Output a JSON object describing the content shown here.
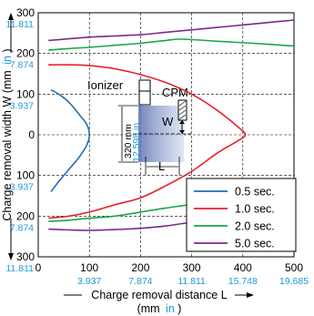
{
  "chart_data": {
    "type": "line",
    "xlabel": "Charge removal distance L",
    "xlabel_unit_prefix": "(mm",
    "xlabel_unit_in": "in",
    "xlabel_unit_suffix": ")",
    "ylabel": "Charge removal width W (mm",
    "ylabel_in": "in",
    "ylabel_suffix": ")",
    "xlim": [
      0,
      500
    ],
    "ylim": [
      -300,
      300
    ],
    "x_ticks_mm": [
      "0",
      "100",
      "200",
      "300",
      "400",
      "500"
    ],
    "x_ticks_in": [
      "3.937",
      "7.874",
      "11.811",
      "15.748",
      "19.685"
    ],
    "y_ticks_mm": [
      "300",
      "200",
      "100",
      "0",
      "100",
      "200",
      "300"
    ],
    "y_ticks_in": [
      "11.811",
      "7.874",
      "3.937",
      "3.937",
      "7.874",
      "11.811"
    ],
    "grid": true,
    "legend_position": "bottom-right",
    "series": [
      {
        "name": "0.5 sec.",
        "color": "#1f6fb4",
        "points": [
          [
            25,
            110
          ],
          [
            40,
            100
          ],
          [
            60,
            80
          ],
          [
            80,
            50
          ],
          [
            95,
            25
          ],
          [
            100,
            0
          ],
          [
            95,
            -25
          ],
          [
            80,
            -55
          ],
          [
            60,
            -85
          ],
          [
            40,
            -115
          ],
          [
            25,
            -140
          ]
        ]
      },
      {
        "name": "1.0 sec.",
        "color": "#e8212b",
        "points": [
          [
            20,
            172
          ],
          [
            60,
            172
          ],
          [
            100,
            170
          ],
          [
            150,
            162
          ],
          [
            200,
            148
          ],
          [
            250,
            128
          ],
          [
            300,
            100
          ],
          [
            350,
            60
          ],
          [
            390,
            20
          ],
          [
            405,
            0
          ],
          [
            390,
            -15
          ],
          [
            350,
            -45
          ],
          [
            300,
            -90
          ],
          [
            250,
            -125
          ],
          [
            200,
            -155
          ],
          [
            150,
            -172
          ],
          [
            100,
            -190
          ],
          [
            60,
            -200
          ],
          [
            20,
            -205
          ]
        ]
      },
      {
        "name": "2.0 sec.",
        "color": "#1aa64b",
        "points": [
          [
            20,
            208
          ],
          [
            60,
            212
          ],
          [
            100,
            215
          ],
          [
            150,
            220
          ],
          [
            200,
            225
          ],
          [
            250,
            232
          ],
          [
            280,
            235
          ],
          [
            350,
            230
          ],
          [
            420,
            225
          ],
          [
            500,
            218
          ]
        ],
        "points_lower": [
          [
            20,
            -213
          ],
          [
            60,
            -210
          ],
          [
            100,
            -205
          ],
          [
            150,
            -200
          ],
          [
            200,
            -190
          ],
          [
            250,
            -180
          ],
          [
            300,
            -172
          ],
          [
            360,
            -170
          ]
        ]
      },
      {
        "name": "5.0 sec.",
        "color": "#7b2a8c",
        "points": [
          [
            20,
            232
          ],
          [
            60,
            236
          ],
          [
            100,
            240
          ],
          [
            150,
            243
          ],
          [
            200,
            246
          ],
          [
            250,
            252
          ],
          [
            300,
            258
          ],
          [
            350,
            264
          ],
          [
            400,
            270
          ],
          [
            450,
            276
          ],
          [
            500,
            282
          ]
        ],
        "points_lower": [
          [
            20,
            -232
          ],
          [
            60,
            -234
          ],
          [
            100,
            -235
          ],
          [
            150,
            -233
          ],
          [
            200,
            -230
          ],
          [
            250,
            -224
          ],
          [
            300,
            -215
          ],
          [
            340,
            -210
          ]
        ]
      }
    ]
  },
  "diagram": {
    "ionizer_label": "Ionizer",
    "cpm_label": "CPM",
    "w_label": "W",
    "l_label": "L",
    "height_mm": "320 mm",
    "height_in": "12.598 in"
  },
  "colors": {
    "inch_text": "#1f9ad6",
    "arrow": "#000000"
  }
}
